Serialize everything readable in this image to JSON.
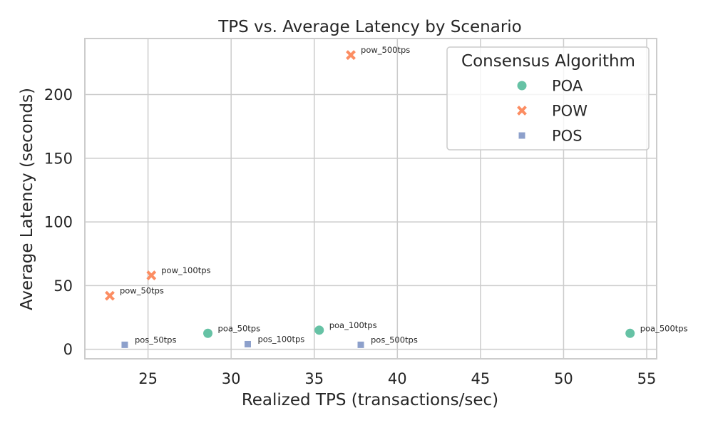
{
  "chart_data": {
    "type": "scatter",
    "title": "TPS vs. Average Latency by Scenario",
    "xlabel": "Realized TPS (transactions/sec)",
    "ylabel": "Average Latency (seconds)",
    "xlim": [
      21.2,
      55.6
    ],
    "ylim": [
      -7.5,
      244
    ],
    "xticks": [
      25,
      30,
      35,
      40,
      45,
      50,
      55
    ],
    "yticks": [
      0,
      50,
      100,
      150,
      200
    ],
    "grid": true,
    "legend": {
      "title": "Consensus Algorithm",
      "position": "top-right"
    },
    "series": [
      {
        "name": "POA",
        "marker": "circle",
        "color": "#66c2a5",
        "points": [
          {
            "label": "poa_50tps",
            "x": 28.6,
            "y": 12.5
          },
          {
            "label": "poa_100tps",
            "x": 35.3,
            "y": 15.0
          },
          {
            "label": "poa_500tps",
            "x": 54.0,
            "y": 12.5
          }
        ]
      },
      {
        "name": "POW",
        "marker": "x",
        "color": "#fc8d62",
        "points": [
          {
            "label": "pow_50tps",
            "x": 22.7,
            "y": 42.0
          },
          {
            "label": "pow_100tps",
            "x": 25.2,
            "y": 58.0
          },
          {
            "label": "pow_500tps",
            "x": 37.2,
            "y": 231.0
          }
        ]
      },
      {
        "name": "POS",
        "marker": "square",
        "color": "#8da0cb",
        "points": [
          {
            "label": "pos_50tps",
            "x": 23.6,
            "y": 3.5
          },
          {
            "label": "pos_100tps",
            "x": 31.0,
            "y": 4.0
          },
          {
            "label": "pos_500tps",
            "x": 37.8,
            "y": 3.5
          }
        ]
      }
    ]
  }
}
